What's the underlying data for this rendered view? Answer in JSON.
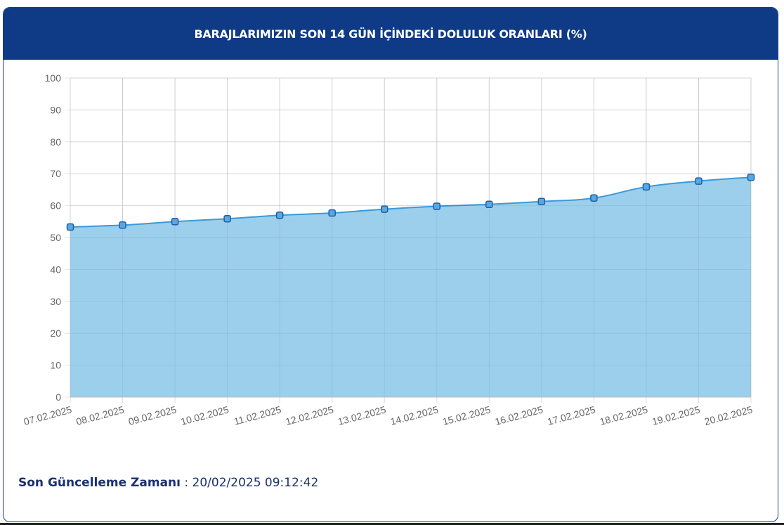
{
  "header": {
    "title": "BARAJLARIMIZIN SON 14 GÜN İÇİNDEKİ DOLULUK ORANLARI (%)"
  },
  "footer": {
    "label": "Son Güncelleme Zamanı",
    "separator": " : ",
    "value": "20/02/2025 09:12:42"
  },
  "colors": {
    "header_bg": "#0f3a85",
    "area_fill": "#9bcfec",
    "line": "#3a9ad9",
    "point": "#5aa8e0",
    "point_border": "#1f5fa8"
  },
  "chart_data": {
    "type": "area",
    "title": "BARAJLARIMIZIN SON 14 GÜN İÇİNDEKİ DOLULUK ORANLARI (%)",
    "xlabel": "",
    "ylabel": "",
    "categories": [
      "07.02.2025",
      "08.02.2025",
      "09.02.2025",
      "10.02.2025",
      "11.02.2025",
      "12.02.2025",
      "13.02.2025",
      "14.02.2025",
      "15.02.2025",
      "16.02.2025",
      "17.02.2025",
      "18.02.2025",
      "19.02.2025",
      "20.02.2025"
    ],
    "values": [
      53.3,
      53.9,
      55.0,
      55.9,
      57.0,
      57.7,
      58.9,
      59.8,
      60.4,
      61.3,
      62.4,
      65.9,
      67.7,
      68.9
    ],
    "ylim": [
      0,
      100
    ],
    "yticks": [
      0,
      10,
      20,
      30,
      40,
      50,
      60,
      70,
      80,
      90,
      100
    ],
    "grid": true,
    "legend": "none"
  }
}
